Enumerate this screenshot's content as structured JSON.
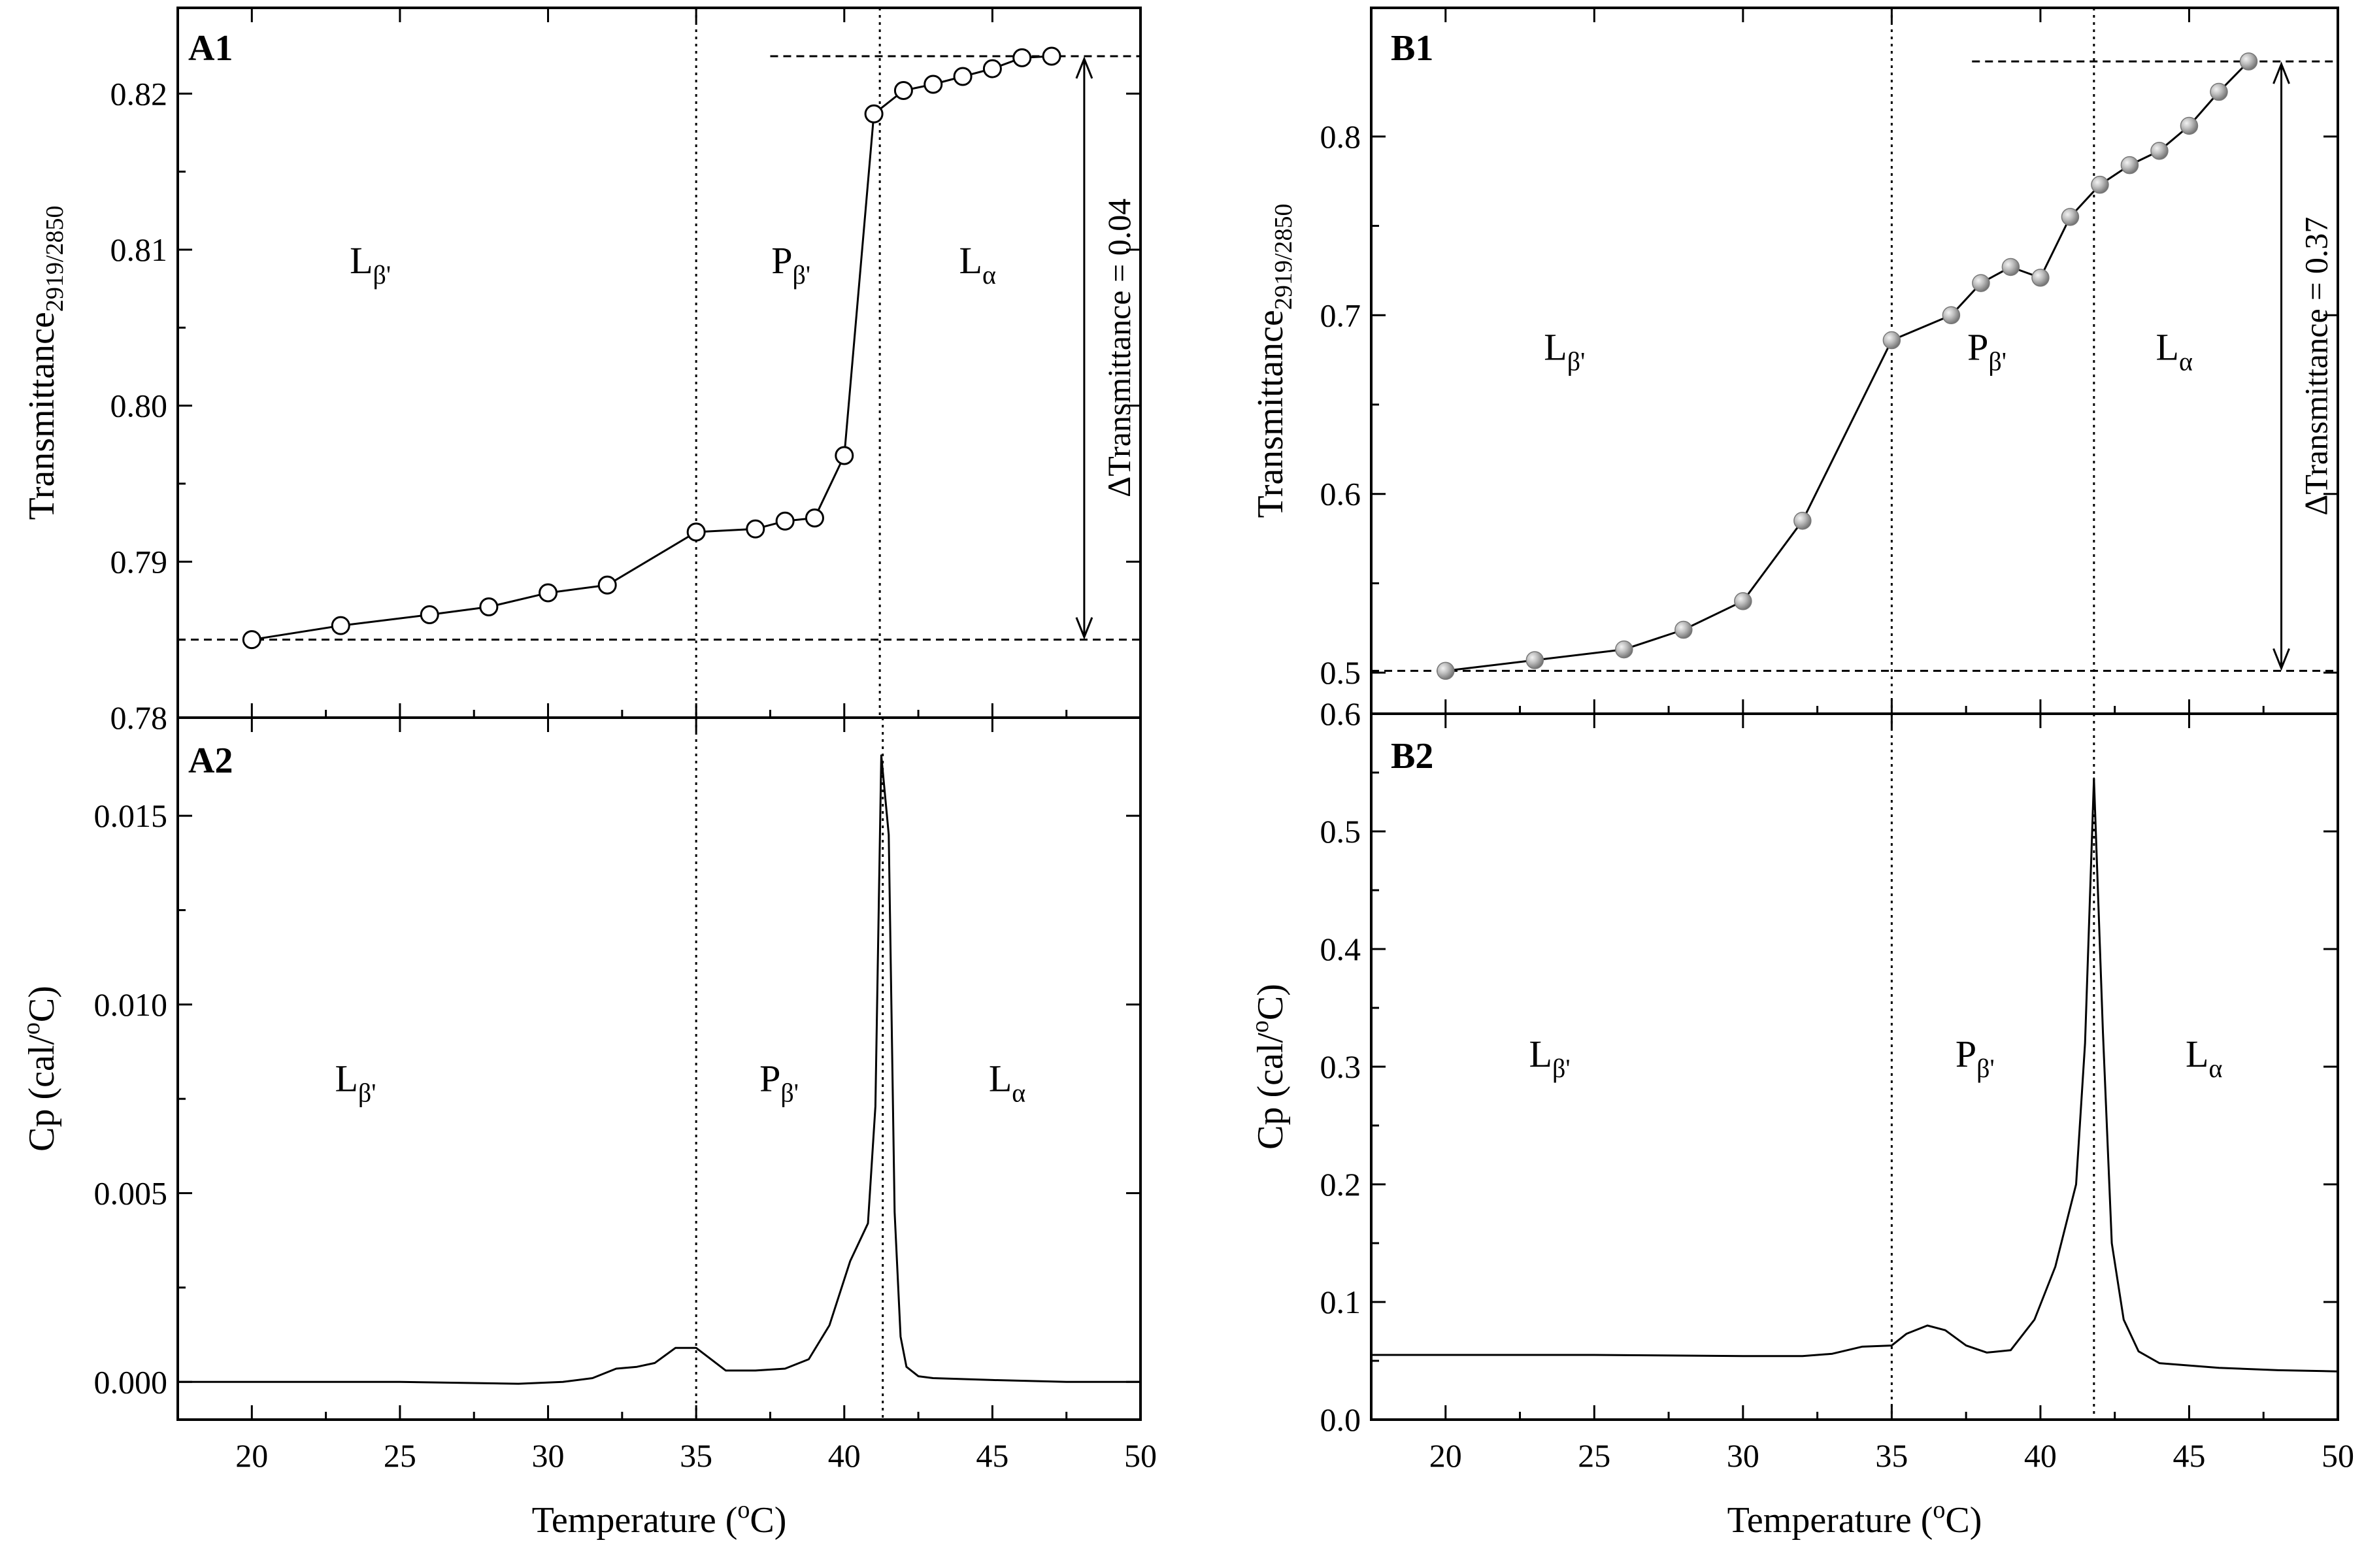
{
  "chart_data": [
    {
      "panel": "A1",
      "type": "line",
      "xlabel": "Temperature (oC)",
      "ylabel": "Transmittance2919/2850",
      "xlim": [
        17.5,
        50
      ],
      "ylim": [
        0.78,
        0.8255
      ],
      "yticks": [
        "0.78",
        "0.79",
        "0.80",
        "0.81",
        "0.82"
      ],
      "ytick_values": [
        0.78,
        0.79,
        0.8,
        0.81,
        0.82
      ],
      "marker": "open-circle",
      "series": [
        {
          "name": "Transmittance",
          "x": [
            20,
            23,
            26,
            28,
            30,
            32,
            35,
            37,
            38,
            39,
            40,
            41,
            42,
            43,
            44,
            45,
            46,
            47
          ],
          "y": [
            0.785,
            0.7859,
            0.7866,
            0.7871,
            0.788,
            0.7885,
            0.7919,
            0.7921,
            0.7926,
            0.7928,
            0.7968,
            0.8187,
            0.8202,
            0.8206,
            0.8211,
            0.8216,
            0.8223,
            0.8224
          ]
        }
      ],
      "vlines": [
        35,
        41.2
      ],
      "hlines": [
        0.785,
        0.8224
      ],
      "delta_label": "ΔTransmittance = 0.04",
      "phases": [
        {
          "main": "L",
          "sub": "β'",
          "x": 24,
          "y": 0.8085
        },
        {
          "main": "P",
          "sub": "β'",
          "x": 38.2,
          "y": 0.8085
        },
        {
          "main": "L",
          "sub": "α",
          "x": 44.5,
          "y": 0.8085
        }
      ]
    },
    {
      "panel": "A2",
      "type": "line",
      "xlabel": "Temperature (oC)",
      "ylabel": "Cp (cal/oC)",
      "xlim": [
        17.5,
        50
      ],
      "ylim": [
        -0.001,
        0.0176
      ],
      "xticks": [
        "20",
        "25",
        "30",
        "35",
        "40",
        "45",
        "50"
      ],
      "xtick_values": [
        20,
        25,
        30,
        35,
        40,
        45,
        50
      ],
      "yticks": [
        "0.000",
        "0.005",
        "0.010",
        "0.015"
      ],
      "ytick_values": [
        0,
        0.005,
        0.01,
        0.015
      ],
      "series": [
        {
          "name": "Cp",
          "x": [
            17.5,
            20,
            25,
            29,
            30.5,
            31.5,
            32.3,
            33,
            33.6,
            34.3,
            35,
            35.5,
            36,
            37,
            38,
            38.8,
            39.5,
            40.2,
            40.8,
            41.05,
            41.25,
            41.5,
            41.7,
            41.9,
            42.1,
            42.5,
            43,
            45,
            47.5,
            50
          ],
          "y": [
            0.0,
            0.0,
            0.0,
            -5e-05,
            0.0,
            0.0001,
            0.00035,
            0.0004,
            0.0005,
            0.0009,
            0.0009,
            0.0006,
            0.0003,
            0.0003,
            0.00035,
            0.0006,
            0.0015,
            0.0032,
            0.0042,
            0.0073,
            0.0166,
            0.0145,
            0.0045,
            0.0012,
            0.0004,
            0.00015,
            0.0001,
            5e-05,
            0.0,
            0.0
          ]
        }
      ],
      "vlines": [
        35,
        41.3
      ],
      "phases": [
        {
          "main": "L",
          "sub": "β'",
          "x": 23.5,
          "y": 0.0077
        },
        {
          "main": "P",
          "sub": "β'",
          "x": 37.8,
          "y": 0.0077
        },
        {
          "main": "L",
          "sub": "α",
          "x": 45.5,
          "y": 0.0077
        }
      ]
    },
    {
      "panel": "B1",
      "type": "line",
      "xlabel": "Temperature (oC)",
      "ylabel": "Transmittance2919/2850",
      "xlim": [
        17.5,
        50
      ],
      "ylim": [
        0.477,
        0.872
      ],
      "yticks": [
        "0.5",
        "0.6",
        "0.7",
        "0.8"
      ],
      "ytick_values": [
        0.5,
        0.6,
        0.7,
        0.8
      ],
      "marker": "grey-sphere",
      "series": [
        {
          "name": "Transmittance",
          "x": [
            20,
            23,
            26,
            28,
            30,
            32,
            35,
            37,
            38,
            39,
            40,
            41,
            42,
            43,
            44,
            45,
            46,
            47
          ],
          "y": [
            0.501,
            0.507,
            0.513,
            0.524,
            0.54,
            0.585,
            0.686,
            0.7,
            0.718,
            0.727,
            0.721,
            0.755,
            0.773,
            0.784,
            0.792,
            0.806,
            0.825,
            0.842
          ]
        }
      ],
      "vlines": [
        35,
        41.8
      ],
      "hlines": [
        0.501,
        0.842
      ],
      "delta_label": "ΔTransmittance = 0.37",
      "phases": [
        {
          "main": "L",
          "sub": "β'",
          "x": 24,
          "y": 0.675
        },
        {
          "main": "P",
          "sub": "β'",
          "x": 38.2,
          "y": 0.675
        },
        {
          "main": "L",
          "sub": "α",
          "x": 44.5,
          "y": 0.675
        }
      ]
    },
    {
      "panel": "B2",
      "type": "line",
      "xlabel": "Temperature (oC)",
      "ylabel": "Cp (cal/oC)",
      "xlim": [
        17.5,
        50
      ],
      "ylim": [
        0,
        0.6
      ],
      "xticks": [
        "20",
        "25",
        "30",
        "35",
        "40",
        "45",
        "50"
      ],
      "xtick_values": [
        20,
        25,
        30,
        35,
        40,
        45,
        50
      ],
      "yticks": [
        "0.0",
        "0.1",
        "0.2",
        "0.3",
        "0.4",
        "0.5",
        "0.6"
      ],
      "ytick_values": [
        0,
        0.1,
        0.2,
        0.3,
        0.4,
        0.5,
        0.6
      ],
      "series": [
        {
          "name": "Cp",
          "x": [
            17.5,
            20,
            25,
            30,
            32,
            33,
            34,
            35,
            35.5,
            36.2,
            36.8,
            37.5,
            38.2,
            39,
            39.8,
            40.5,
            41.2,
            41.5,
            41.8,
            42.1,
            42.4,
            42.8,
            43.3,
            44,
            46,
            48,
            50
          ],
          "y": [
            0.055,
            0.055,
            0.055,
            0.054,
            0.054,
            0.056,
            0.062,
            0.063,
            0.073,
            0.08,
            0.076,
            0.063,
            0.057,
            0.059,
            0.085,
            0.13,
            0.2,
            0.32,
            0.545,
            0.33,
            0.15,
            0.085,
            0.058,
            0.048,
            0.044,
            0.042,
            0.041
          ]
        }
      ],
      "vlines": [
        35,
        41.8
      ],
      "phases": [
        {
          "main": "L",
          "sub": "β'",
          "x": 23.5,
          "y": 0.3
        },
        {
          "main": "P",
          "sub": "β'",
          "x": 37.8,
          "y": 0.3
        },
        {
          "main": "L",
          "sub": "α",
          "x": 45.5,
          "y": 0.3
        }
      ]
    }
  ]
}
